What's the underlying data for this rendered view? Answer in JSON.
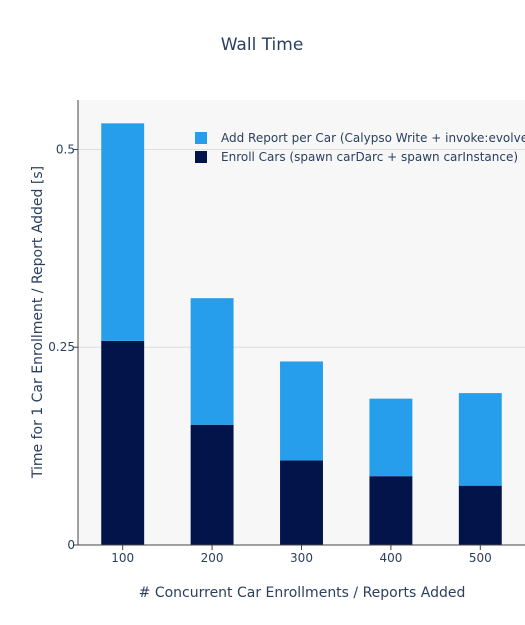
{
  "chart_data": {
    "type": "bar",
    "barmode": "stack",
    "title": "Wall Time",
    "xlabel": "# Concurrent Car Enrollments / Reports Added",
    "ylabel": "Time for 1 Car Enrollment / Report Added [s]",
    "categories": [
      "100",
      "200",
      "300",
      "400",
      "500"
    ],
    "ylim": [
      0,
      0.5625
    ],
    "yticks": [
      0,
      0.25,
      0.5
    ],
    "ytick_labels": [
      "0",
      "0.25",
      "0.5"
    ],
    "grid": true,
    "legend_position": "top-right",
    "series": [
      {
        "name": "Enroll Cars (spawn carDarc + spawn carInstance)",
        "color": "#03144b",
        "values": [
          0.258,
          0.152,
          0.107,
          0.087,
          0.075
        ]
      },
      {
        "name": "Add Report per Car (Calypso Write + invoke:evolve)",
        "color": "#279eeb",
        "values": [
          0.275,
          0.16,
          0.125,
          0.098,
          0.117
        ]
      }
    ]
  }
}
